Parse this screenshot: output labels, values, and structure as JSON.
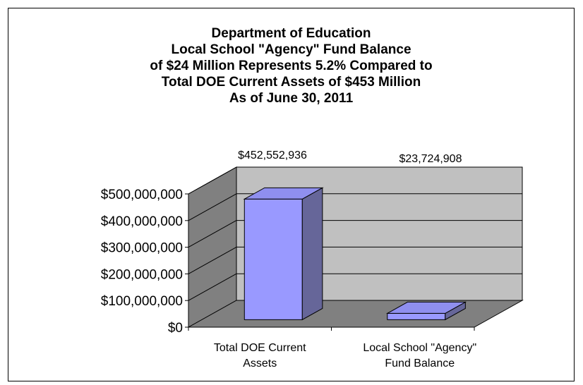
{
  "chart_data": {
    "type": "bar",
    "title_lines": [
      "Department of Education",
      "Local School \"Agency\" Fund Balance",
      "of $24 Million Represents 5.2% Compared to",
      "Total DOE Current Assets of $453 Million",
      "As of June 30, 2011"
    ],
    "categories": [
      [
        "Total DOE Current",
        "Assets"
      ],
      [
        "Local School \"Agency\"",
        "Fund Balance"
      ]
    ],
    "values": [
      452552936,
      23724908
    ],
    "data_labels": [
      "$452,552,936",
      "$23,724,908"
    ],
    "y_ticks": [
      0,
      100000000,
      200000000,
      300000000,
      400000000,
      500000000
    ],
    "y_tick_labels": [
      "$0",
      "$100,000,000",
      "$200,000,000",
      "$300,000,000",
      "$400,000,000",
      "$500,000,000"
    ],
    "ylim": [
      0,
      500000000
    ],
    "grid": true,
    "legend": "none",
    "style": "3d-column",
    "colors": {
      "bar_front": "#9999ff",
      "bar_top": "#8f8fef",
      "bar_side": "#666699",
      "back_wall": "#c0c0c0",
      "side_wall": "#808080",
      "floor": "#808080"
    }
  }
}
